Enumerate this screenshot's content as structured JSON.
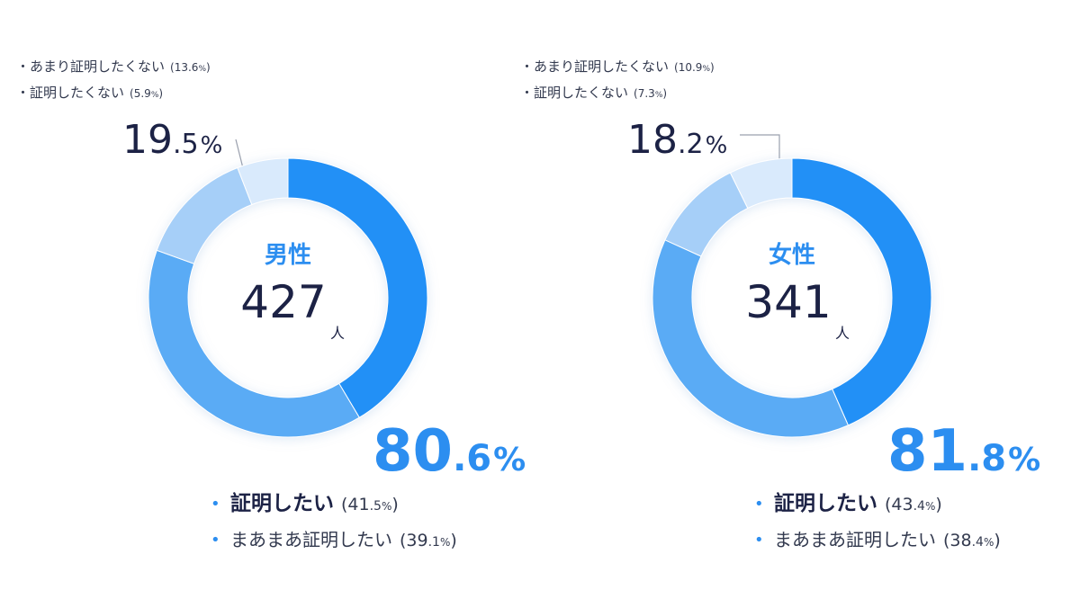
{
  "colors": {
    "very_want": "#2490f6",
    "somewhat_want": "#5aabf5",
    "somewhat_not": "#a6cff8",
    "not_want": "#d9eafc",
    "navy": "#1c2245",
    "accent_blue": "#2c8ef0",
    "gray_text": "#333a4f"
  },
  "chart_data": [
    {
      "type": "pie",
      "variant": "donut",
      "center_label": "男性",
      "count": "427",
      "count_unit": "人",
      "slices": [
        {
          "label": "証明したい",
          "value": 41.5,
          "color": "#2490f6"
        },
        {
          "label": "まあまあ証明したい",
          "value": 39.1,
          "color": "#5aabf5"
        },
        {
          "label": "あまり証明したくない",
          "value": 13.6,
          "color": "#a6cff8"
        },
        {
          "label": "証明したくない",
          "value": 5.9,
          "color": "#d9eafc"
        }
      ],
      "want_total": {
        "int": "80",
        "dec": ".6",
        "pct": "%"
      },
      "not_total": {
        "int": "19",
        "dec": ".5",
        "pct": "%"
      },
      "top_legend": [
        {
          "bullet": "・",
          "label": "あまり証明したくない",
          "value": "13.6",
          "unit": "%"
        },
        {
          "bullet": "・",
          "label": "証明したくない",
          "value": "5.9",
          "unit": "%"
        }
      ],
      "bottom_legend": [
        {
          "bullet": "•",
          "label": "証明したい",
          "int": "41",
          "dec": ".5",
          "unit": "%"
        },
        {
          "bullet": "•",
          "label": "まあまあ証明したい",
          "int": "39",
          "dec": ".1",
          "unit": "%"
        }
      ]
    },
    {
      "type": "pie",
      "variant": "donut",
      "center_label": "女性",
      "count": "341",
      "count_unit": "人",
      "slices": [
        {
          "label": "証明したい",
          "value": 43.4,
          "color": "#2490f6"
        },
        {
          "label": "まあまあ証明したい",
          "value": 38.4,
          "color": "#5aabf5"
        },
        {
          "label": "あまり証明したくない",
          "value": 10.9,
          "color": "#a6cff8"
        },
        {
          "label": "証明したくない",
          "value": 7.3,
          "color": "#d9eafc"
        }
      ],
      "want_total": {
        "int": "81",
        "dec": ".8",
        "pct": "%"
      },
      "not_total": {
        "int": "18",
        "dec": ".2",
        "pct": "%"
      },
      "top_legend": [
        {
          "bullet": "・",
          "label": "あまり証明したくない",
          "value": "10.9",
          "unit": "%"
        },
        {
          "bullet": "・",
          "label": "証明したくない",
          "value": "7.3",
          "unit": "%"
        }
      ],
      "bottom_legend": [
        {
          "bullet": "•",
          "label": "証明したい",
          "int": "43",
          "dec": ".4",
          "unit": "%"
        },
        {
          "bullet": "•",
          "label": "まあまあ証明したい",
          "int": "38",
          "dec": ".4",
          "unit": "%"
        }
      ]
    }
  ]
}
